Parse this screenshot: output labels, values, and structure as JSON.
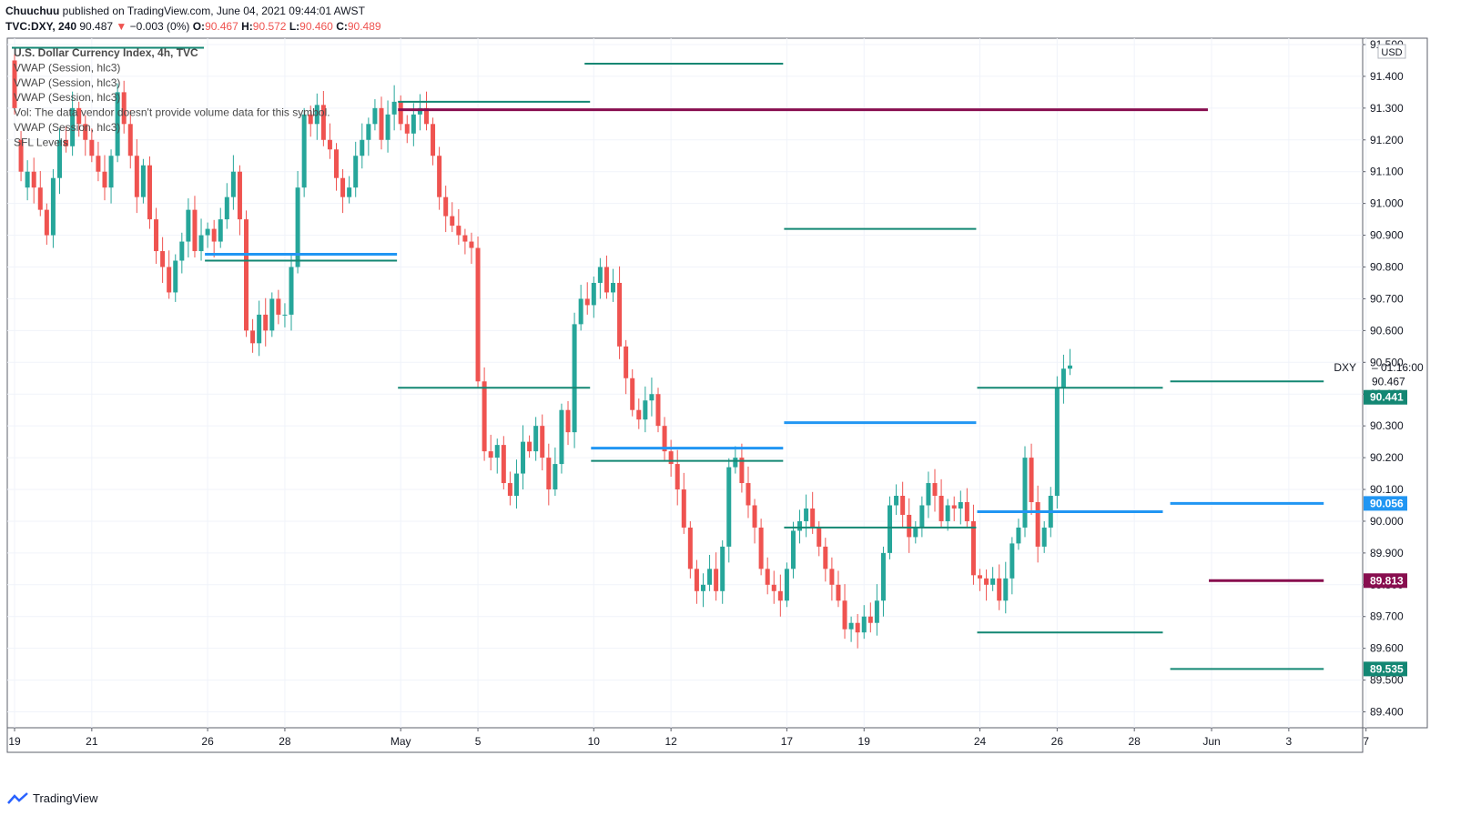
{
  "header": {
    "publisher": "Chuuchuu",
    "published_text": "published on TradingView.com, June 04, 2021 09:44:01 AWST",
    "symbol": "TVC:DXY, 240",
    "last": "90.487",
    "change": "−0.003 (0%)",
    "o_label": "O:",
    "o_value": "90.467",
    "h_label": "H:",
    "h_value": "90.572",
    "l_label": "L:",
    "l_value": "90.460",
    "c_label": "C:",
    "c_value": "90.489"
  },
  "legend": [
    "U.S. Dollar Currency Index, 4h, TVC",
    "VWAP (Session, hlc3)",
    "VWAP (Session, hlc3)",
    "VWAP (Session, hlc3)",
    "Vol: The data vendor doesn't provide volume data for this symbol.",
    "VWAP (Session, hlc3)",
    "SFL Levels"
  ],
  "footer": {
    "brand": "TradingView"
  },
  "colors": {
    "up": "#26a69a",
    "down": "#ef5350",
    "teal_level": "#138773",
    "blue_level": "#2196f3",
    "maroon_level": "#880e4f",
    "grid": "#f0f3fa",
    "axis_text": "#131722"
  },
  "chart_data": {
    "type": "candlestick",
    "ylim": [
      89.35,
      91.52
    ],
    "currency_label": "USD",
    "y_ticks": [
      91.5,
      91.4,
      91.3,
      91.2,
      91.1,
      91.0,
      90.9,
      90.8,
      90.7,
      90.6,
      90.5,
      90.4,
      90.3,
      90.2,
      90.1,
      90.0,
      89.9,
      89.8,
      89.7,
      89.6,
      89.5,
      89.4
    ],
    "y_tick_labels": [
      "91.500",
      "91.400",
      "91.300",
      "91.200",
      "91.100",
      "91.000",
      "90.900",
      "90.800",
      "90.700",
      "90.600",
      "90.500",
      "90.400",
      "90.300",
      "90.200",
      "90.100",
      "90.000",
      "89.900",
      "89.800",
      "89.700",
      "89.600",
      "89.500",
      "89.400"
    ],
    "x_ticks": [
      {
        "label": "19",
        "x": 0
      },
      {
        "label": "21",
        "x": 12
      },
      {
        "label": "26",
        "x": 30
      },
      {
        "label": "28",
        "x": 42
      },
      {
        "label": "May",
        "x": 60
      },
      {
        "label": "5",
        "x": 72
      },
      {
        "label": "10",
        "x": 90
      },
      {
        "label": "12",
        "x": 102
      },
      {
        "label": "17",
        "x": 120
      },
      {
        "label": "19",
        "x": 132
      },
      {
        "label": "24",
        "x": 150
      },
      {
        "label": "26",
        "x": 162
      },
      {
        "label": "28",
        "x": 174
      },
      {
        "label": "Jun",
        "x": 186
      },
      {
        "label": "3",
        "x": 198
      },
      {
        "label": "7",
        "x": 210
      }
    ],
    "series_points": [
      [
        91.45,
        91.3
      ],
      [
        91.2,
        91.1
      ],
      [
        91.05,
        91.1
      ],
      [
        91.1,
        91.05
      ],
      [
        91.05,
        90.98
      ],
      [
        90.98,
        90.9
      ],
      [
        90.9,
        91.08
      ],
      [
        91.08,
        91.2
      ],
      [
        91.2,
        91.18
      ],
      [
        91.18,
        91.3
      ],
      [
        91.3,
        91.25
      ],
      [
        91.25,
        91.2
      ],
      [
        91.2,
        91.15
      ],
      [
        91.15,
        91.1
      ],
      [
        91.1,
        91.05
      ],
      [
        91.05,
        91.15
      ],
      [
        91.15,
        91.35
      ],
      [
        91.35,
        91.25
      ],
      [
        91.25,
        91.15
      ],
      [
        91.15,
        91.02
      ],
      [
        91.02,
        91.12
      ],
      [
        91.12,
        90.95
      ],
      [
        90.95,
        90.85
      ],
      [
        90.85,
        90.8
      ],
      [
        90.8,
        90.72
      ],
      [
        90.72,
        90.82
      ],
      [
        90.82,
        90.88
      ],
      [
        90.88,
        90.98
      ],
      [
        90.98,
        90.85
      ],
      [
        90.85,
        90.9
      ],
      [
        90.9,
        90.92
      ],
      [
        90.92,
        90.88
      ],
      [
        90.88,
        90.95
      ],
      [
        90.95,
        91.02
      ],
      [
        91.02,
        91.1
      ],
      [
        91.1,
        90.95
      ],
      [
        90.95,
        90.6
      ],
      [
        90.6,
        90.56
      ],
      [
        90.56,
        90.65
      ],
      [
        90.65,
        90.6
      ],
      [
        90.6,
        90.7
      ],
      [
        90.7,
        90.65
      ],
      [
        90.65,
        90.65
      ],
      [
        90.65,
        90.8
      ],
      [
        90.8,
        91.05
      ],
      [
        91.05,
        91.28
      ],
      [
        91.28,
        91.25
      ],
      [
        91.25,
        91.31
      ],
      [
        91.31,
        91.2
      ],
      [
        91.2,
        91.17
      ],
      [
        91.17,
        91.08
      ],
      [
        91.08,
        91.02
      ],
      [
        91.02,
        91.05
      ],
      [
        91.05,
        91.15
      ],
      [
        91.15,
        91.2
      ],
      [
        91.2,
        91.25
      ],
      [
        91.25,
        91.3
      ],
      [
        91.3,
        91.2
      ],
      [
        91.2,
        91.28
      ],
      [
        91.28,
        91.32
      ],
      [
        91.32,
        91.25
      ],
      [
        91.25,
        91.22
      ],
      [
        91.22,
        91.28
      ],
      [
        91.28,
        91.3
      ],
      [
        91.3,
        91.25
      ],
      [
        91.25,
        91.15
      ],
      [
        91.15,
        91.02
      ],
      [
        91.02,
        90.96
      ],
      [
        90.96,
        90.93
      ],
      [
        90.93,
        90.9
      ],
      [
        90.9,
        90.88
      ],
      [
        90.88,
        90.86
      ],
      [
        90.86,
        90.44
      ],
      [
        90.44,
        90.22
      ],
      [
        90.22,
        90.2
      ],
      [
        90.2,
        90.24
      ],
      [
        90.24,
        90.12
      ],
      [
        90.12,
        90.08
      ],
      [
        90.08,
        90.15
      ],
      [
        90.15,
        90.25
      ],
      [
        90.25,
        90.22
      ],
      [
        90.22,
        90.3
      ],
      [
        90.3,
        90.2
      ],
      [
        90.2,
        90.1
      ],
      [
        90.1,
        90.18
      ],
      [
        90.18,
        90.35
      ],
      [
        90.35,
        90.28
      ],
      [
        90.28,
        90.62
      ],
      [
        90.62,
        90.7
      ],
      [
        90.7,
        90.68
      ],
      [
        90.68,
        90.75
      ],
      [
        90.75,
        90.8
      ],
      [
        90.8,
        90.72
      ],
      [
        90.72,
        90.75
      ],
      [
        90.75,
        90.55
      ],
      [
        90.55,
        90.45
      ],
      [
        90.45,
        90.35
      ],
      [
        90.35,
        90.32
      ],
      [
        90.32,
        90.38
      ],
      [
        90.38,
        90.4
      ],
      [
        90.4,
        90.3
      ],
      [
        90.3,
        90.22
      ],
      [
        90.22,
        90.18
      ],
      [
        90.18,
        90.1
      ],
      [
        90.1,
        89.98
      ],
      [
        89.98,
        89.85
      ],
      [
        89.85,
        89.78
      ],
      [
        89.78,
        89.8
      ],
      [
        89.8,
        89.85
      ],
      [
        89.85,
        89.78
      ],
      [
        89.78,
        89.92
      ],
      [
        89.92,
        90.17
      ],
      [
        90.17,
        90.2
      ],
      [
        90.2,
        90.12
      ],
      [
        90.12,
        90.05
      ],
      [
        90.05,
        89.98
      ],
      [
        89.98,
        89.85
      ],
      [
        89.85,
        89.8
      ],
      [
        89.8,
        89.78
      ],
      [
        89.78,
        89.75
      ],
      [
        89.75,
        89.85
      ],
      [
        89.85,
        89.97
      ],
      [
        89.97,
        90.0
      ],
      [
        90.0,
        90.04
      ],
      [
        90.04,
        89.98
      ],
      [
        89.98,
        89.92
      ],
      [
        89.92,
        89.85
      ],
      [
        89.85,
        89.8
      ],
      [
        89.8,
        89.75
      ],
      [
        89.75,
        89.66
      ],
      [
        89.66,
        89.68
      ],
      [
        89.68,
        89.65
      ],
      [
        89.65,
        89.7
      ],
      [
        89.7,
        89.68
      ],
      [
        89.68,
        89.75
      ],
      [
        89.75,
        89.9
      ],
      [
        89.9,
        90.05
      ],
      [
        90.05,
        90.08
      ],
      [
        90.08,
        90.02
      ],
      [
        90.02,
        89.95
      ],
      [
        89.95,
        89.98
      ],
      [
        89.98,
        90.05
      ],
      [
        90.05,
        90.12
      ],
      [
        90.12,
        90.08
      ],
      [
        90.08,
        90.0
      ],
      [
        90.0,
        90.05
      ],
      [
        90.05,
        90.04
      ],
      [
        90.04,
        90.06
      ],
      [
        90.06,
        90.0
      ],
      [
        90.0,
        89.83
      ],
      [
        89.83,
        89.82
      ],
      [
        89.82,
        89.8
      ],
      [
        89.8,
        89.82
      ],
      [
        89.82,
        89.75
      ],
      [
        89.75,
        89.82
      ],
      [
        89.82,
        89.93
      ],
      [
        89.93,
        89.98
      ],
      [
        89.98,
        90.2
      ],
      [
        90.2,
        90.06
      ],
      [
        90.06,
        89.92
      ],
      [
        89.92,
        89.98
      ],
      [
        89.98,
        90.08
      ],
      [
        90.08,
        90.42
      ],
      [
        90.42,
        90.48
      ],
      [
        90.48,
        90.49
      ]
    ],
    "teal_levels": [
      {
        "price": 91.49,
        "from": 0,
        "to": 29
      },
      {
        "price": 91.44,
        "from": 89,
        "to": 119
      },
      {
        "price": 91.32,
        "from": 60,
        "to": 89
      },
      {
        "price": 90.82,
        "from": 30,
        "to": 59
      },
      {
        "price": 90.92,
        "from": 120,
        "to": 149
      },
      {
        "price": 90.42,
        "from": 60,
        "to": 89
      },
      {
        "price": 90.42,
        "from": 150,
        "to": 178
      },
      {
        "price": 90.44,
        "from": 180,
        "to": 203
      },
      {
        "price": 90.19,
        "from": 90,
        "to": 119
      },
      {
        "price": 89.98,
        "from": 120,
        "to": 149
      },
      {
        "price": 89.65,
        "from": 150,
        "to": 178
      },
      {
        "price": 89.535,
        "from": 180,
        "to": 203
      }
    ],
    "blue_levels": [
      {
        "price": 90.84,
        "from": 30,
        "to": 59
      },
      {
        "price": 90.23,
        "from": 90,
        "to": 119
      },
      {
        "price": 90.31,
        "from": 120,
        "to": 149
      },
      {
        "price": 90.03,
        "from": 150,
        "to": 178
      },
      {
        "price": 90.056,
        "from": 180,
        "to": 203
      }
    ],
    "maroon_levels": [
      {
        "price": 91.295,
        "from": 60,
        "to": 185
      },
      {
        "price": 89.813,
        "from": 186,
        "to": 203
      }
    ],
    "price_labels": [
      {
        "text": "DXY",
        "price": 90.487,
        "kind": "text"
      },
      {
        "text": "01:16:00",
        "price": 90.487,
        "kind": "text"
      },
      {
        "text": "90.467",
        "price": 90.44,
        "kind": "text"
      },
      {
        "text": "90.441",
        "price": 90.39,
        "kind": "teal"
      },
      {
        "text": "90.056",
        "price": 90.056,
        "kind": "blue"
      },
      {
        "text": "89.813",
        "price": 89.813,
        "kind": "maroon"
      },
      {
        "text": "89.535",
        "price": 89.535,
        "kind": "teal"
      }
    ]
  }
}
